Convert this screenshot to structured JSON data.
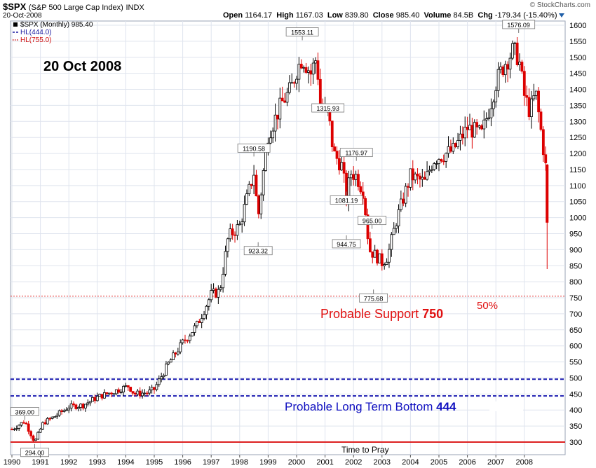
{
  "header": {
    "symbol": "$SPX",
    "name": "(S&P 500 Large Cap Index)",
    "exchange": "INDX",
    "date": "20-Oct-2008",
    "open_label": "Open",
    "open": "1164.17",
    "high_label": "High",
    "high": "1167.03",
    "low_label": "Low",
    "low": "839.80",
    "close_label": "Close",
    "close": "985.40",
    "volume_label": "Volume",
    "volume": "84.5B",
    "chg_label": "Chg",
    "chg": "-179.34 (-15.40%)",
    "brand": "© StockCharts.com"
  },
  "legend": [
    {
      "text": "$SPX (Monthly) 985.40",
      "color": "#000000"
    },
    {
      "text": "HL(444.0)",
      "color": "#1a1aa0"
    },
    {
      "text": "HL(755.0)",
      "color": "#d01010"
    }
  ],
  "annotations": {
    "date_label": "20 Oct 2008",
    "support": "Probable Support",
    "support_value": "750",
    "fifty": "50%",
    "bottom": "Probable Long Term Bottom",
    "bottom_value": "444",
    "pray": "Time to Pray"
  },
  "colors": {
    "up": "#000000",
    "down": "#dd0000",
    "support_line": "#e03030",
    "bottom_line": "#1a1ab0",
    "pray_line": "#dd2020",
    "grid": "#dfe4ee"
  },
  "chart_data": {
    "type": "candlestick",
    "title": "$SPX (S&P 500 Large Cap Index) Monthly",
    "y_scale": "linear",
    "ylim": [
      290,
      1610
    ],
    "y_ticks": [
      300,
      350,
      400,
      450,
      500,
      550,
      600,
      650,
      700,
      750,
      800,
      850,
      900,
      950,
      1000,
      1050,
      1100,
      1150,
      1200,
      1250,
      1300,
      1350,
      1400,
      1450,
      1500,
      1550,
      1600
    ],
    "x_ticks": [
      "1990",
      "1991",
      "1992",
      "1993",
      "1994",
      "1995",
      "1996",
      "1997",
      "1998",
      "1999",
      "2000",
      "2001",
      "2002",
      "2003",
      "2004",
      "2005",
      "2006",
      "2007",
      "2008"
    ],
    "xlim": [
      1990.0,
      2008.95
    ],
    "price_anchors": [
      [
        1990.0,
        340
      ],
      [
        1990.45,
        365
      ],
      [
        1990.8,
        300
      ],
      [
        1991.1,
        360
      ],
      [
        1991.5,
        380
      ],
      [
        1992.0,
        410
      ],
      [
        1992.5,
        415
      ],
      [
        1993.0,
        440
      ],
      [
        1993.8,
        465
      ],
      [
        1994.1,
        475
      ],
      [
        1994.3,
        450
      ],
      [
        1994.8,
        455
      ],
      [
        1995.0,
        465
      ],
      [
        1995.5,
        545
      ],
      [
        1996.0,
        610
      ],
      [
        1996.5,
        665
      ],
      [
        1997.0,
        760
      ],
      [
        1997.3,
        770
      ],
      [
        1997.6,
        940
      ],
      [
        1998.0,
        975
      ],
      [
        1998.5,
        1140
      ],
      [
        1998.65,
        1000
      ],
      [
        1998.8,
        1120
      ],
      [
        1999.0,
        1260
      ],
      [
        1999.5,
        1360
      ],
      [
        1999.8,
        1400
      ],
      [
        2000.0,
        1460
      ],
      [
        2000.2,
        1500
      ],
      [
        2000.5,
        1450
      ],
      [
        2000.7,
        1500
      ],
      [
        2000.85,
        1340
      ],
      [
        2001.1,
        1330
      ],
      [
        2001.3,
        1200
      ],
      [
        2001.6,
        1160
      ],
      [
        2001.75,
        1060
      ],
      [
        2001.9,
        1140
      ],
      [
        2002.1,
        1130
      ],
      [
        2002.35,
        1080
      ],
      [
        2002.55,
        900
      ],
      [
        2002.8,
        880
      ],
      [
        2003.0,
        860
      ],
      [
        2003.2,
        880
      ],
      [
        2003.5,
        990
      ],
      [
        2004.0,
        1130
      ],
      [
        2004.5,
        1110
      ],
      [
        2004.8,
        1180
      ],
      [
        2005.0,
        1190
      ],
      [
        2005.5,
        1210
      ],
      [
        2006.0,
        1280
      ],
      [
        2006.5,
        1260
      ],
      [
        2006.8,
        1350
      ],
      [
        2007.0,
        1420
      ],
      [
        2007.3,
        1480
      ],
      [
        2007.6,
        1520
      ],
      [
        2007.8,
        1500
      ],
      [
        2008.0,
        1380
      ],
      [
        2008.2,
        1330
      ],
      [
        2008.4,
        1390
      ],
      [
        2008.6,
        1260
      ],
      [
        2008.75,
        1160
      ],
      [
        2008.8,
        985
      ]
    ],
    "callouts": [
      {
        "label": "369.00",
        "x": 1990.45,
        "y": 369.0,
        "pos": "above"
      },
      {
        "label": "294.00",
        "x": 1990.8,
        "y": 294.0,
        "pos": "below"
      },
      {
        "label": "1190.58",
        "x": 1998.5,
        "y": 1190.58,
        "pos": "above"
      },
      {
        "label": "923.32",
        "x": 1998.65,
        "y": 923.32,
        "pos": "below"
      },
      {
        "label": "1553.11",
        "x": 2000.2,
        "y": 1553.11,
        "pos": "above"
      },
      {
        "label": "1315.93",
        "x": 2001.1,
        "y": 1315.93,
        "pos": "above"
      },
      {
        "label": "1081.19",
        "x": 2001.75,
        "y": 1081.19,
        "pos": "below"
      },
      {
        "label": "1176.97",
        "x": 2002.1,
        "y": 1176.97,
        "pos": "above"
      },
      {
        "label": "944.75",
        "x": 2001.75,
        "y": 944.75,
        "pos": "below"
      },
      {
        "label": "965.00",
        "x": 2002.65,
        "y": 965.0,
        "pos": "above"
      },
      {
        "label": "775.68",
        "x": 2002.7,
        "y": 775.68,
        "pos": "below"
      },
      {
        "label": "1576.09",
        "x": 2007.8,
        "y": 1576.09,
        "pos": "above"
      }
    ],
    "horizontal_lines": [
      {
        "name": "HL(755.0)",
        "y": 755,
        "style": "dotted",
        "color": "#e03030"
      },
      {
        "name": "HL(444.0)",
        "y": 444,
        "style": "dashed",
        "color": "#1a1ab0"
      },
      {
        "name": "HL(496)",
        "y": 496,
        "style": "dashed",
        "color": "#1a1ab0"
      },
      {
        "name": "Time to Pray",
        "y": 300,
        "style": "solid",
        "color": "#dd2020"
      }
    ]
  }
}
